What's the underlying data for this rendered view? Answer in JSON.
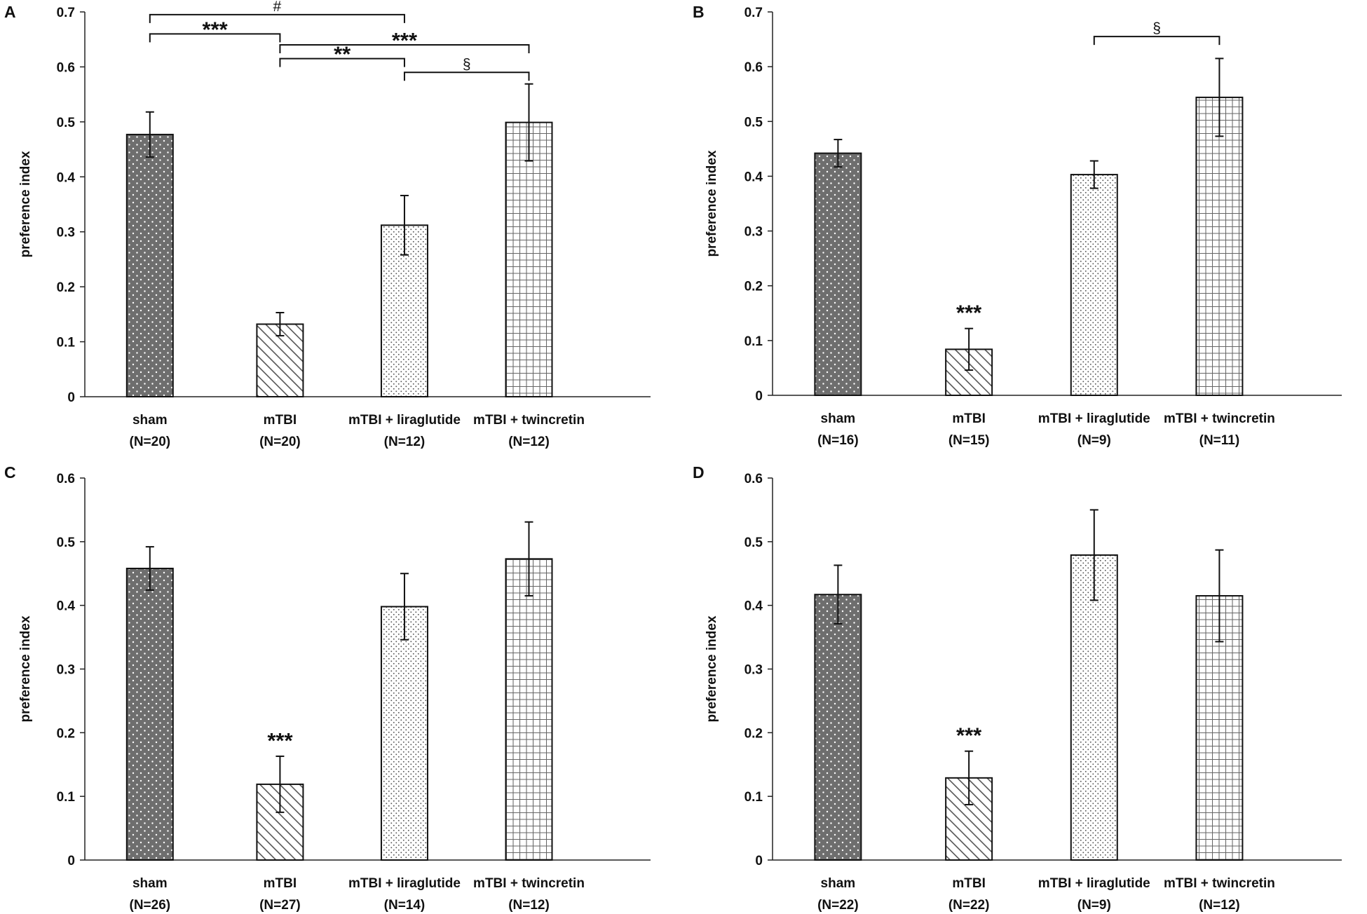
{
  "colors": {
    "axis": "#222222",
    "sham_fill": "#6e6e6e",
    "pattern_fg": "#5a5a5a",
    "bar_stroke": "#111111",
    "background": "#ffffff"
  },
  "chart_data": [
    {
      "panel": "A",
      "type": "bar",
      "ylabel": "preference index",
      "ylim": [
        0,
        0.7
      ],
      "yticks": [
        "0",
        "0.1",
        "0.2",
        "0.3",
        "0.4",
        "0.5",
        "0.6",
        "0.7"
      ],
      "categories": [
        "sham",
        "mTBI",
        "mTBI + liraglutide",
        "mTBI + twincretin"
      ],
      "n_labels": [
        "(N=20)",
        "(N=20)",
        "(N=12)",
        "(N=12)"
      ],
      "values": [
        0.477,
        0.132,
        0.312,
        0.499
      ],
      "errors": [
        0.041,
        0.021,
        0.054,
        0.07
      ],
      "annotations": [],
      "brackets": [
        {
          "from": 0,
          "to": 2,
          "level": 0.695,
          "label": "#"
        },
        {
          "from": 0,
          "to": 1,
          "level": 0.66,
          "label": "***"
        },
        {
          "from": 1,
          "to": 3,
          "level": 0.64,
          "label": "***"
        },
        {
          "from": 1,
          "to": 2,
          "level": 0.615,
          "label": "**"
        },
        {
          "from": 2,
          "to": 3,
          "level": 0.59,
          "label": "§"
        }
      ]
    },
    {
      "panel": "B",
      "type": "bar",
      "ylabel": "preference index",
      "ylim": [
        0,
        0.7
      ],
      "yticks": [
        "0",
        "0.1",
        "0.2",
        "0.3",
        "0.4",
        "0.5",
        "0.6",
        "0.7"
      ],
      "categories": [
        "sham",
        "mTBI",
        "mTBI + liraglutide",
        "mTBI + twincretin"
      ],
      "n_labels": [
        "(N=16)",
        "(N=15)",
        "(N=9)",
        "(N=11)"
      ],
      "values": [
        0.442,
        0.084,
        0.403,
        0.544
      ],
      "errors": [
        0.025,
        0.038,
        0.025,
        0.071
      ],
      "annotations": [
        {
          "bar": 1,
          "label": "***"
        }
      ],
      "brackets": [
        {
          "from": 2,
          "to": 3,
          "level": 0.655,
          "label": "§"
        }
      ]
    },
    {
      "panel": "C",
      "type": "bar",
      "ylabel": "preference index",
      "ylim": [
        0,
        0.6
      ],
      "yticks": [
        "0",
        "0.1",
        "0.2",
        "0.3",
        "0.4",
        "0.5",
        "0.6"
      ],
      "categories": [
        "sham",
        "mTBI",
        "mTBI + liraglutide",
        "mTBI + twincretin"
      ],
      "n_labels": [
        "(N=26)",
        "(N=27)",
        "(N=14)",
        "(N=12)"
      ],
      "values": [
        0.458,
        0.119,
        0.398,
        0.473
      ],
      "errors": [
        0.034,
        0.044,
        0.052,
        0.058
      ],
      "annotations": [
        {
          "bar": 1,
          "label": "***"
        }
      ],
      "brackets": []
    },
    {
      "panel": "D",
      "type": "bar",
      "ylabel": "preference index",
      "ylim": [
        0,
        0.6
      ],
      "yticks": [
        "0",
        "0.1",
        "0.2",
        "0.3",
        "0.4",
        "0.5",
        "0.6"
      ],
      "categories": [
        "sham",
        "mTBI",
        "mTBI + liraglutide",
        "mTBI + twincretin"
      ],
      "n_labels": [
        "(N=22)",
        "(N=22)",
        "(N=9)",
        "(N=12)"
      ],
      "values": [
        0.417,
        0.129,
        0.479,
        0.415
      ],
      "errors": [
        0.046,
        0.042,
        0.071,
        0.072
      ],
      "annotations": [
        {
          "bar": 1,
          "label": "***"
        }
      ],
      "brackets": []
    }
  ]
}
